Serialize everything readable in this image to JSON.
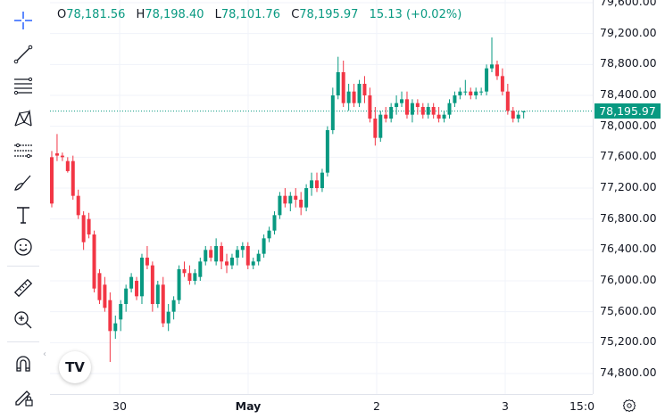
{
  "legend": {
    "o_label": "O",
    "o_value": "78,181.56",
    "h_label": "H",
    "h_value": "78,198.40",
    "l_label": "L",
    "l_value": "78,101.76",
    "c_label": "C",
    "c_value": "78,195.97",
    "change": "15.13 (+0.02%)"
  },
  "price_tag": "78,195.97",
  "y_ticks": [
    "79,600.00",
    "79,200.00",
    "78,800.00",
    "78,400.00",
    "78,000.00",
    "77,600.00",
    "77,200.00",
    "76,800.00",
    "76,400.00",
    "76,000.00",
    "75,600.00",
    "75,200.00",
    "74,800.00"
  ],
  "x_ticks": [
    {
      "label": "30",
      "bold": false
    },
    {
      "label": "May",
      "bold": true
    },
    {
      "label": "2",
      "bold": false
    },
    {
      "label": "3",
      "bold": false
    },
    {
      "label": "15:0",
      "bold": false
    }
  ],
  "logo": "TV",
  "tools": [
    "crosshair-icon",
    "trend-line-icon",
    "fib-retracement-icon",
    "pattern-icon",
    "forecast-icon",
    "brush-icon",
    "text-icon",
    "emoji-icon",
    "ruler-icon",
    "zoom-icon",
    "magnet-icon",
    "lock-draw-icon"
  ],
  "colors": {
    "up": "#089981",
    "down": "#f23645",
    "tag": "#089981"
  },
  "chart_data": {
    "type": "candlestick",
    "y_axis": {
      "min": 74600,
      "max": 79700,
      "ticks": [
        79600,
        79200,
        78800,
        78400,
        78000,
        77600,
        77200,
        76800,
        76400,
        76000,
        75600,
        75200,
        74800
      ]
    },
    "current_price": 78195.97,
    "candles": [
      [
        77600,
        77680,
        76950,
        77000
      ],
      [
        77650,
        77900,
        77550,
        77620
      ],
      [
        77620,
        77660,
        77550,
        77600
      ],
      [
        77550,
        77600,
        77400,
        77420
      ],
      [
        77550,
        77620,
        77050,
        77100
      ],
      [
        77100,
        77180,
        76800,
        76850
      ],
      [
        76850,
        76900,
        76400,
        76500
      ],
      [
        76800,
        76880,
        76550,
        76600
      ],
      [
        76600,
        76650,
        75850,
        75900
      ],
      [
        76100,
        76150,
        75700,
        75750
      ],
      [
        75950,
        76050,
        75600,
        75650
      ],
      [
        75750,
        75850,
        74950,
        75350
      ],
      [
        75350,
        75550,
        75250,
        75450
      ],
      [
        75500,
        75750,
        75350,
        75700
      ],
      [
        75700,
        75950,
        75600,
        75900
      ],
      [
        75900,
        76100,
        75850,
        76050
      ],
      [
        76000,
        76050,
        75750,
        75800
      ],
      [
        75800,
        76350,
        75700,
        76300
      ],
      [
        76300,
        76450,
        76150,
        76200
      ],
      [
        76200,
        76250,
        75600,
        75700
      ],
      [
        75700,
        76000,
        75650,
        75950
      ],
      [
        75950,
        76050,
        75400,
        75450
      ],
      [
        75450,
        75700,
        75350,
        75600
      ],
      [
        75600,
        75800,
        75500,
        75750
      ],
      [
        75750,
        76200,
        75700,
        76150
      ],
      [
        76150,
        76250,
        76050,
        76100
      ],
      [
        76100,
        76200,
        75950,
        76000
      ],
      [
        76000,
        76150,
        75950,
        76100
      ],
      [
        76050,
        76300,
        76000,
        76250
      ],
      [
        76250,
        76450,
        76200,
        76400
      ],
      [
        76400,
        76450,
        76250,
        76300
      ],
      [
        76250,
        76550,
        76200,
        76450
      ],
      [
        76450,
        76500,
        76150,
        76250
      ],
      [
        76250,
        76350,
        76100,
        76200
      ],
      [
        76200,
        76350,
        76150,
        76300
      ],
      [
        76300,
        76450,
        76200,
        76400
      ],
      [
        76400,
        76500,
        76300,
        76450
      ],
      [
        76450,
        76500,
        76150,
        76200
      ],
      [
        76200,
        76300,
        76150,
        76250
      ],
      [
        76250,
        76400,
        76200,
        76350
      ],
      [
        76350,
        76600,
        76300,
        76550
      ],
      [
        76550,
        76700,
        76500,
        76650
      ],
      [
        76650,
        76900,
        76600,
        76850
      ],
      [
        76850,
        77150,
        76800,
        77100
      ],
      [
        77100,
        77200,
        76950,
        77000
      ],
      [
        77000,
        77150,
        76900,
        77100
      ],
      [
        77100,
        77200,
        76950,
        77050
      ],
      [
        77050,
        77150,
        76850,
        76950
      ],
      [
        76950,
        77250,
        76900,
        77200
      ],
      [
        77200,
        77400,
        77100,
        77300
      ],
      [
        77300,
        77400,
        77150,
        77200
      ],
      [
        77200,
        77450,
        77150,
        77400
      ],
      [
        77400,
        78000,
        77350,
        77950
      ],
      [
        77950,
        78500,
        77900,
        78400
      ],
      [
        78400,
        78900,
        78350,
        78700
      ],
      [
        78700,
        78850,
        78250,
        78300
      ],
      [
        78300,
        78550,
        78200,
        78450
      ],
      [
        78450,
        78550,
        78250,
        78300
      ],
      [
        78300,
        78600,
        78250,
        78550
      ],
      [
        78550,
        78650,
        78300,
        78400
      ],
      [
        78400,
        78500,
        78050,
        78100
      ],
      [
        78100,
        78250,
        77750,
        77850
      ],
      [
        77850,
        78200,
        77800,
        78150
      ],
      [
        78150,
        78250,
        78050,
        78100
      ],
      [
        78100,
        78300,
        78050,
        78250
      ],
      [
        78250,
        78400,
        78150,
        78300
      ],
      [
        78300,
        78450,
        78250,
        78350
      ],
      [
        78350,
        78450,
        78100,
        78150
      ],
      [
        78150,
        78350,
        78050,
        78300
      ],
      [
        78300,
        78350,
        78150,
        78250
      ],
      [
        78250,
        78300,
        78100,
        78150
      ],
      [
        78150,
        78300,
        78100,
        78250
      ],
      [
        78250,
        78300,
        78100,
        78150
      ],
      [
        78150,
        78250,
        78050,
        78100
      ],
      [
        78100,
        78200,
        78050,
        78150
      ],
      [
        78150,
        78350,
        78100,
        78300
      ],
      [
        78300,
        78450,
        78250,
        78400
      ],
      [
        78400,
        78500,
        78350,
        78450
      ],
      [
        78450,
        78600,
        78400,
        78450
      ],
      [
        78450,
        78500,
        78350,
        78400
      ],
      [
        78400,
        78500,
        78350,
        78450
      ],
      [
        78450,
        78500,
        78400,
        78450
      ],
      [
        78450,
        78800,
        78400,
        78750
      ],
      [
        78750,
        79150,
        78700,
        78800
      ],
      [
        78800,
        78850,
        78600,
        78650
      ],
      [
        78650,
        78750,
        78400,
        78450
      ],
      [
        78450,
        78550,
        78150,
        78200
      ],
      [
        78200,
        78250,
        78050,
        78100
      ],
      [
        78100,
        78200,
        78050,
        78150
      ],
      [
        78181.56,
        78198.4,
        78101.76,
        78195.97
      ]
    ]
  }
}
